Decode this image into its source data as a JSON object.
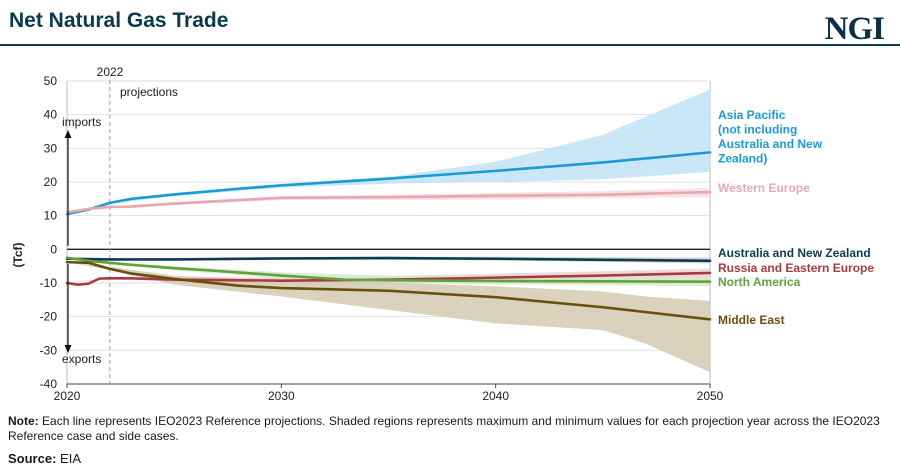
{
  "header": {
    "title": "Net Natural Gas Trade",
    "logo_text": "NGI"
  },
  "footer": {
    "note_label": "Note:",
    "note_text": "Each line represents IEO2023 Reference projections. Shaded regions represents maximum and minimum values for each projection year across the IEO2023 Reference case and side cases.",
    "source_label": "Source:",
    "source_text": "EIA"
  },
  "chart_data": {
    "type": "line",
    "title": "Net Natural Gas Trade",
    "xlabel": "",
    "ylabel": "(Tcf)",
    "xlim": [
      2020,
      2050
    ],
    "ylim": [
      -40,
      50
    ],
    "x_ticks": [
      "2020",
      "2030",
      "2040",
      "2050"
    ],
    "y_ticks": [
      50,
      40,
      30,
      20,
      10,
      0,
      -10,
      -20,
      -30,
      -40
    ],
    "grid": true,
    "annotations": {
      "year_marker": "2022",
      "year_marker_x": 2022,
      "projections": "projections",
      "imports": "imports",
      "exports": "exports"
    },
    "series": [
      {
        "name": "Asia Pacific\n(not including\nAustralia and New\nZealand)",
        "color": "#1a9ad6",
        "band_color": "#bfe3f4",
        "x": [
          2020,
          2021,
          2022,
          2023,
          2025,
          2028,
          2030,
          2035,
          2040,
          2045,
          2050
        ],
        "y": [
          10.5,
          11.8,
          13.8,
          15,
          16.3,
          18,
          19,
          21,
          23.3,
          25.8,
          28.8
        ],
        "band_x": [
          2020,
          2022,
          2025,
          2030,
          2035,
          2040,
          2045,
          2050
        ],
        "band_low": [
          10.5,
          13.5,
          15.8,
          18.3,
          19.5,
          20,
          20.8,
          23
        ],
        "band_high": [
          10.5,
          13.9,
          16.6,
          19.5,
          21.5,
          26,
          34,
          47.5
        ]
      },
      {
        "name": "Western Europe",
        "color": "#e6a8b1",
        "band_color": "#f6dde0",
        "x": [
          2020,
          2021,
          2022,
          2023,
          2025,
          2030,
          2035,
          2040,
          2045,
          2050
        ],
        "y": [
          11,
          12,
          12.6,
          12.7,
          13.6,
          15.3,
          15.5,
          15.9,
          16.2,
          17
        ],
        "band_x": [
          2020,
          2022,
          2025,
          2030,
          2035,
          2040,
          2045,
          2050
        ],
        "band_low": [
          11,
          12.4,
          13.1,
          14.6,
          14.6,
          14.8,
          15.2,
          15.5
        ],
        "band_high": [
          11,
          12.8,
          14,
          15.8,
          16.2,
          16.8,
          17.3,
          18.2
        ]
      },
      {
        "name": "Australia and New Zealand",
        "color": "#0f3a52",
        "band_color": "#c9d3da",
        "x": [
          2020,
          2022,
          2025,
          2030,
          2035,
          2040,
          2045,
          2050
        ],
        "y": [
          -2.8,
          -3,
          -3,
          -2.7,
          -2.6,
          -2.8,
          -3.1,
          -3.4
        ],
        "band_x": [
          2020,
          2022,
          2025,
          2030,
          2035,
          2040,
          2045,
          2050
        ],
        "band_low": [
          -2.9,
          -3.1,
          -3.2,
          -3.1,
          -3.1,
          -3.3,
          -3.7,
          -4.2
        ],
        "band_high": [
          -2.7,
          -2.9,
          -2.8,
          -2.4,
          -2.2,
          -2.2,
          -2.3,
          -2.4
        ]
      },
      {
        "name": "Russia and Eastern Europe",
        "color": "#a83a45",
        "band_color": "#ead3d5",
        "x": [
          2020,
          2020.5,
          2021,
          2021.5,
          2022,
          2023,
          2025,
          2030,
          2035,
          2040,
          2045,
          2050
        ],
        "y": [
          -10,
          -10.5,
          -10.2,
          -8.7,
          -8.6,
          -8.6,
          -9,
          -9.3,
          -9,
          -8.4,
          -7.8,
          -7
        ],
        "band_x": [
          2020,
          2022,
          2025,
          2030,
          2035,
          2040,
          2045,
          2050
        ],
        "band_low": [
          -10,
          -8.8,
          -9.6,
          -10.2,
          -10.2,
          -10,
          -9.6,
          -9.2
        ],
        "band_high": [
          -10,
          -8.4,
          -8.3,
          -8.3,
          -7.9,
          -7.2,
          -6.5,
          -5.7
        ]
      },
      {
        "name": "North America",
        "color": "#5fa33c",
        "band_color": "#d7e9cc",
        "x": [
          2020,
          2021,
          2022,
          2023,
          2025,
          2027,
          2030,
          2033,
          2035,
          2040,
          2045,
          2050
        ],
        "y": [
          -2.5,
          -3.4,
          -4,
          -4.6,
          -5.6,
          -6.4,
          -7.8,
          -9,
          -9.2,
          -9.4,
          -9.5,
          -9.6
        ],
        "band_x": [
          2020,
          2022,
          2025,
          2030,
          2035,
          2040,
          2045,
          2050
        ],
        "band_low": [
          -2.5,
          -4.2,
          -6.2,
          -8.6,
          -10,
          -10.4,
          -10.6,
          -11
        ],
        "band_high": [
          -2.5,
          -3.8,
          -5,
          -6.8,
          -7.8,
          -8,
          -8.1,
          -8.3
        ]
      },
      {
        "name": "Middle East",
        "color": "#6a4f10",
        "band_color": "#d3cab1",
        "x": [
          2020,
          2021,
          2022,
          2023,
          2025,
          2028,
          2030,
          2035,
          2040,
          2045,
          2050
        ],
        "y": [
          -3.8,
          -4,
          -5.8,
          -7.2,
          -8.8,
          -10.8,
          -11.5,
          -12.3,
          -14.2,
          -17.2,
          -20.8
        ],
        "band_x": [
          2020,
          2022,
          2025,
          2030,
          2035,
          2040,
          2045,
          2047,
          2050
        ],
        "band_low": [
          -3.8,
          -6.2,
          -10.5,
          -14,
          -18,
          -22,
          -24,
          -28,
          -36.5
        ],
        "band_high": [
          -3.8,
          -5.2,
          -7.8,
          -9.2,
          -9.8,
          -11,
          -12.5,
          -14,
          -15.3
        ]
      }
    ]
  }
}
